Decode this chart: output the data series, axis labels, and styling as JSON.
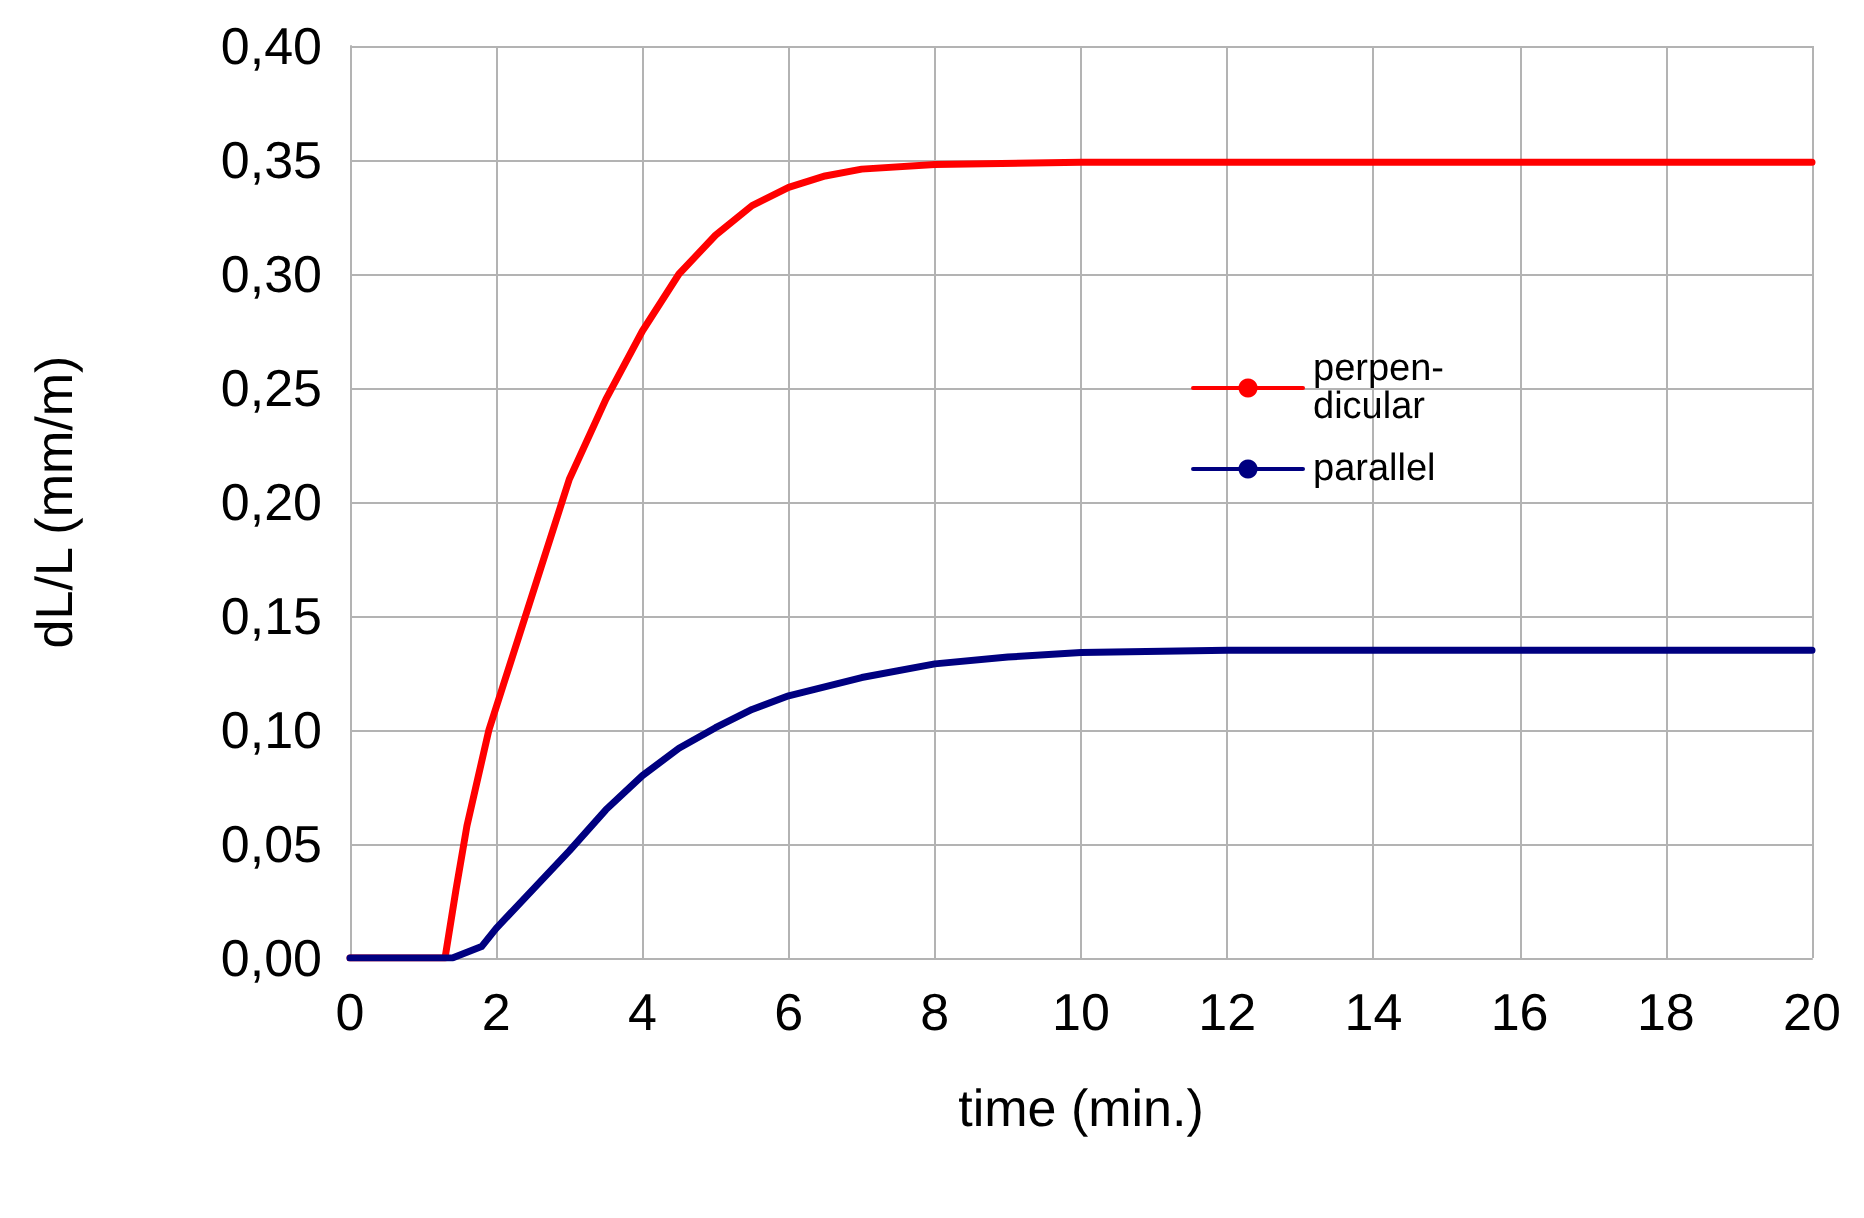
{
  "chart_data": {
    "type": "line",
    "xlabel": "time (min.)",
    "ylabel": "dL/L (mm/m)",
    "xlim": [
      0,
      20
    ],
    "xticks": [
      0,
      2,
      4,
      6,
      8,
      10,
      12,
      14,
      16,
      18,
      20
    ],
    "ylim": [
      0,
      0.4
    ],
    "yticks": [
      {
        "value": 0,
        "label": "0,00"
      },
      {
        "value": 0.05,
        "label": "0,05"
      },
      {
        "value": 0.1,
        "label": "0,10"
      },
      {
        "value": 0.15,
        "label": "0,15"
      },
      {
        "value": 0.2,
        "label": "0,20"
      },
      {
        "value": 0.25,
        "label": "0,25"
      },
      {
        "value": 0.3,
        "label": "0,30"
      },
      {
        "value": 0.35,
        "label": "0,35"
      },
      {
        "value": 0.4,
        "label": "0,40"
      }
    ],
    "grid": true,
    "legend": "right",
    "marker": "none",
    "line_style": "solid",
    "series": [
      {
        "name": "perpen-\ndicular",
        "color": "#ff0000",
        "x": [
          0,
          1.3,
          1.45,
          1.6,
          1.9,
          2.2,
          2.6,
          3,
          3.5,
          4,
          4.5,
          5,
          5.5,
          6,
          6.5,
          7,
          8,
          10,
          14,
          20
        ],
        "values": [
          0,
          0,
          0.03,
          0.058,
          0.1,
          0.13,
          0.17,
          0.21,
          0.245,
          0.275,
          0.3,
          0.317,
          0.33,
          0.338,
          0.343,
          0.346,
          0.348,
          0.349,
          0.349,
          0.349
        ]
      },
      {
        "name": "parallel",
        "color": "#000080",
        "x": [
          0,
          1.4,
          1.8,
          2,
          2.5,
          3,
          3.5,
          4,
          4.5,
          5,
          5.5,
          6,
          7,
          8,
          9,
          10,
          12,
          16,
          20
        ],
        "values": [
          0,
          0,
          0.005,
          0.013,
          0.03,
          0.047,
          0.065,
          0.08,
          0.092,
          0.101,
          0.109,
          0.115,
          0.123,
          0.129,
          0.132,
          0.134,
          0.135,
          0.135,
          0.135
        ]
      }
    ]
  }
}
